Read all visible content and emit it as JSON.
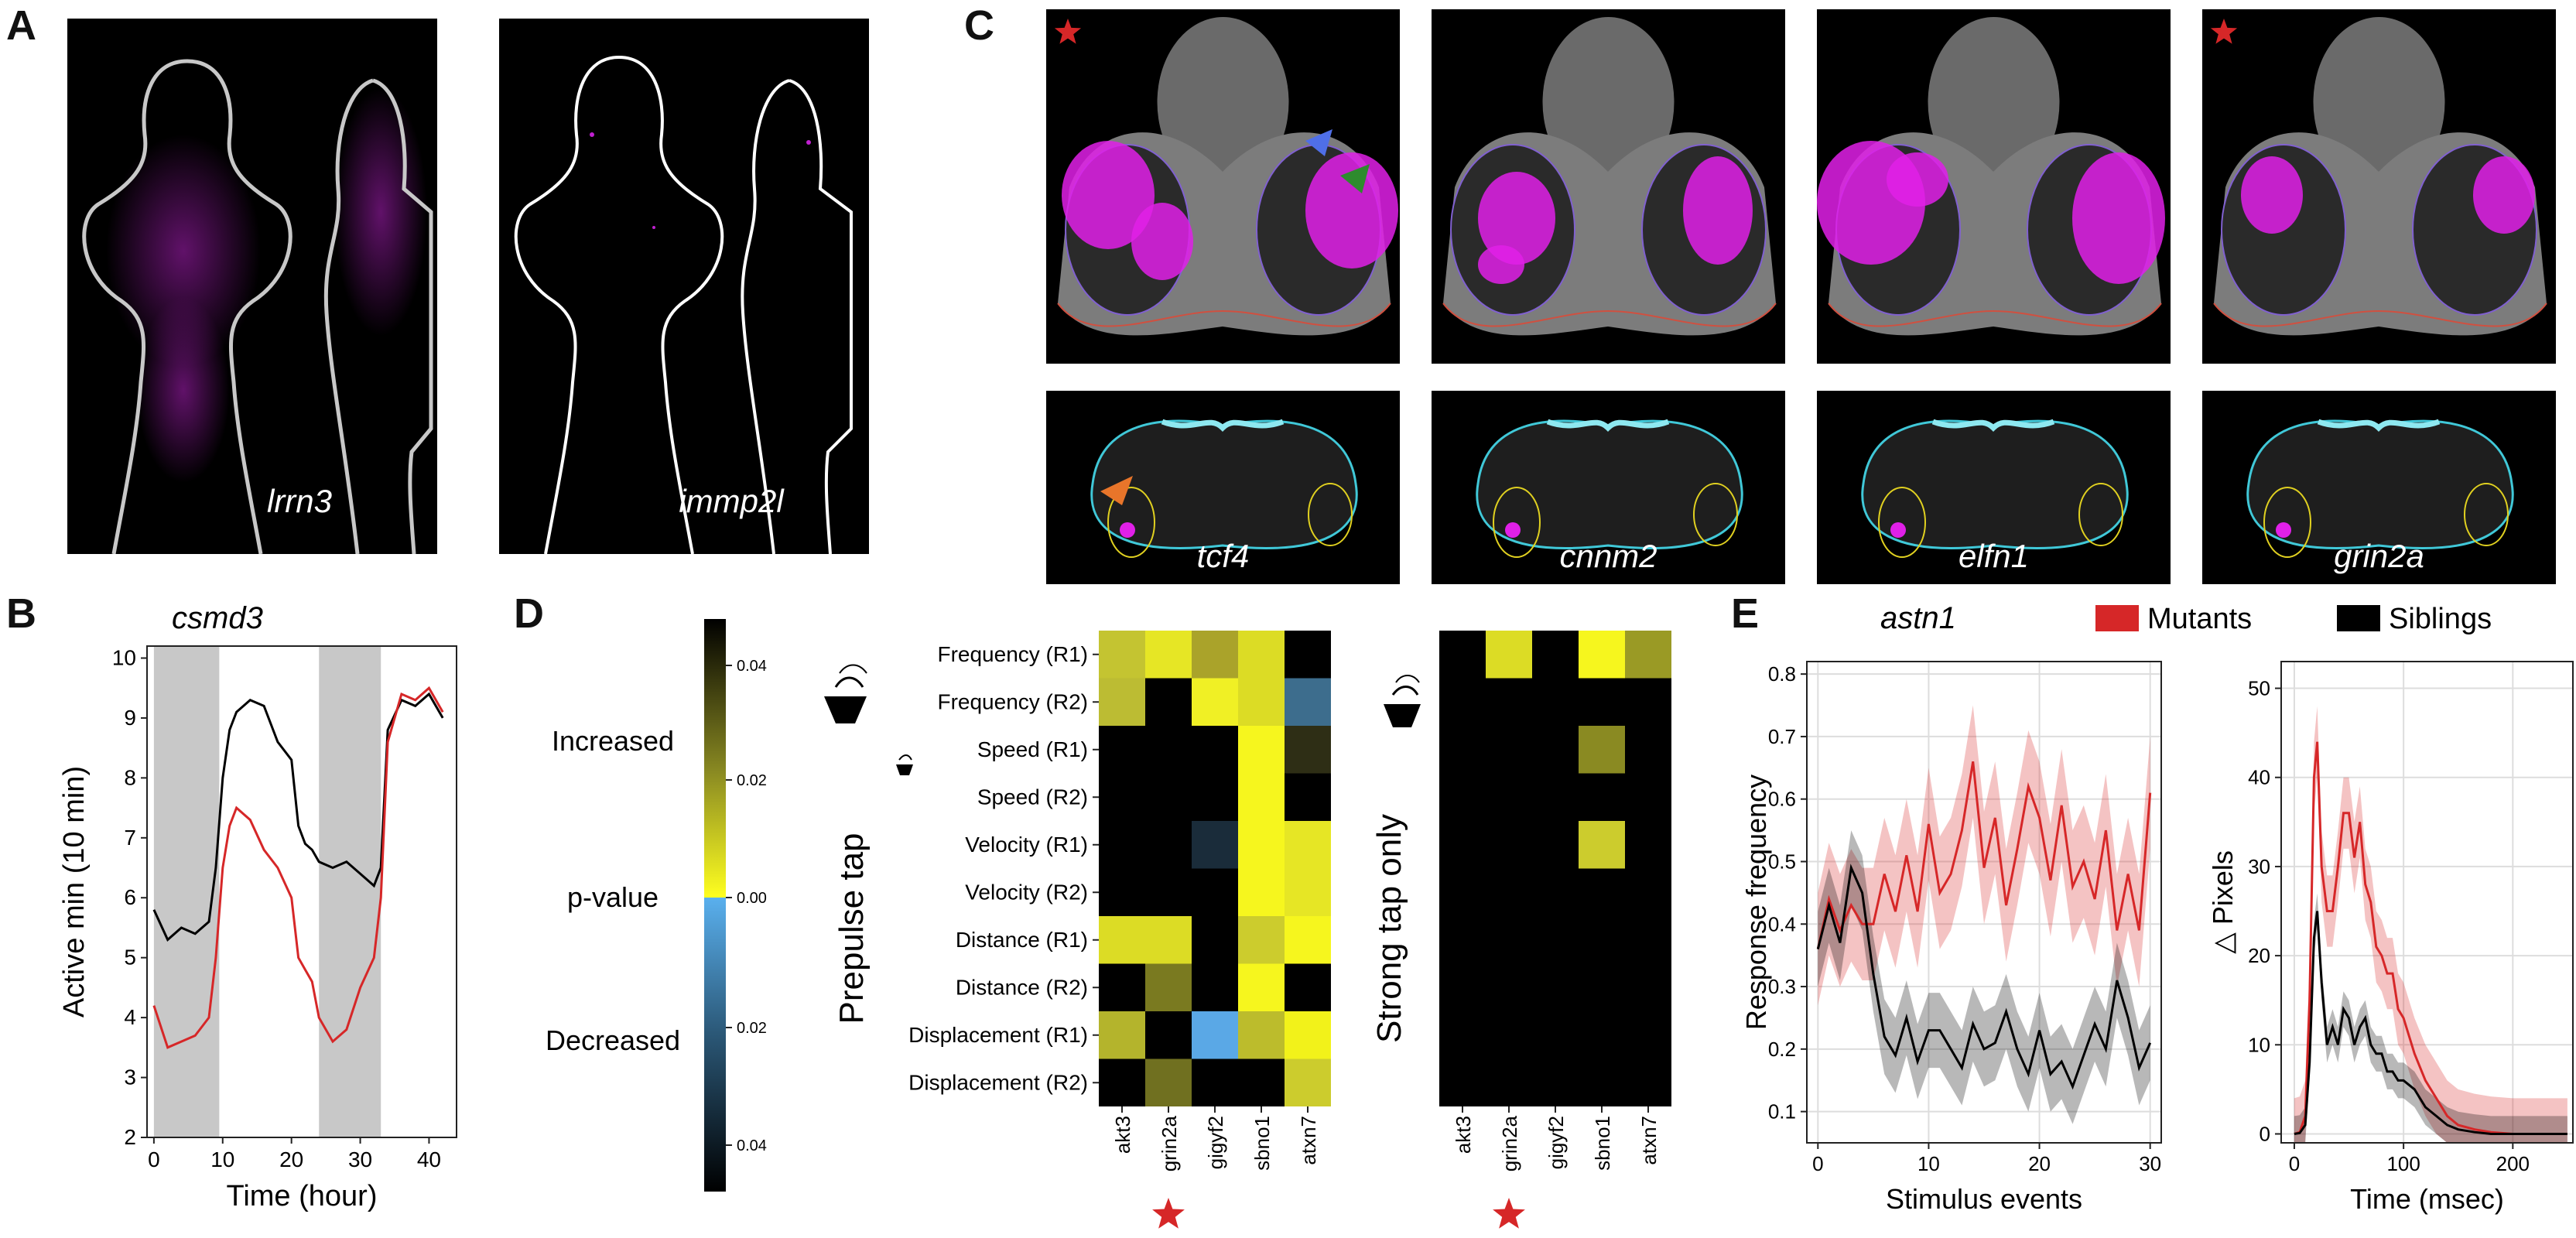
{
  "panels": {
    "A": "A",
    "B": "B",
    "C": "C",
    "D": "D",
    "E": "E"
  },
  "panel_a": {
    "labels": [
      "lrrn3",
      "immp2l"
    ]
  },
  "panel_c": {
    "top_labels": [
      "tcf4",
      "cnnm2",
      "elfn1",
      "grin2a"
    ]
  },
  "panel_b": {
    "gene": "csmd3"
  },
  "panel_d": {
    "colorbar": {
      "ticks_top": [
        "0.04",
        "0.02",
        "0.00"
      ],
      "ticks_bottom": [
        "0.02",
        "0.04"
      ],
      "increased": "Increased",
      "pvalue": "p-value",
      "decreased": "Decreased"
    },
    "row_labels": [
      "Frequency (R1)",
      "Frequency (R2)",
      "Speed (R1)",
      "Speed (R2)",
      "Velocity (R1)",
      "Velocity (R2)",
      "Distance (R1)",
      "Distance (R2)",
      "Displacement (R1)",
      "Displacement (R2)"
    ],
    "col_labels": [
      "akt3",
      "grin2a",
      "gigyf2",
      "sbno1",
      "atxn7"
    ],
    "left_title": "Prepulse tap",
    "right_title": "Strong tap only"
  },
  "panel_e": {
    "gene": "astn1",
    "legend": [
      "Mutants",
      "Siblings"
    ]
  },
  "colors": {
    "mutant": "#d62728",
    "sibling": "#000000",
    "magenta": "#e020e8",
    "highlight_yellow": "#f2f21a",
    "blue_arrow": "#4f6fe8",
    "green_arrow": "#2e8b2e",
    "orange_arrow": "#e8752a",
    "star": "#d62728"
  },
  "chart_data": [
    {
      "type": "line",
      "title": "csmd3",
      "xlabel": "Time (hour)",
      "ylabel": "Active min (10 min)",
      "xlim": [
        -1,
        44
      ],
      "ylim": [
        2,
        10.2
      ],
      "xticks": [
        0,
        10,
        20,
        30,
        40
      ],
      "yticks": [
        2,
        3,
        4,
        5,
        6,
        7,
        8,
        9,
        10
      ],
      "shaded_x": [
        [
          0,
          9.5
        ],
        [
          24,
          33
        ]
      ],
      "series": [
        {
          "color": "#000000",
          "points": [
            [
              0,
              5.8
            ],
            [
              2,
              5.3
            ],
            [
              4,
              5.5
            ],
            [
              6,
              5.4
            ],
            [
              8,
              5.6
            ],
            [
              9,
              6.5
            ],
            [
              10,
              8.0
            ],
            [
              11,
              8.8
            ],
            [
              12,
              9.1
            ],
            [
              14,
              9.3
            ],
            [
              16,
              9.2
            ],
            [
              18,
              8.6
            ],
            [
              20,
              8.3
            ],
            [
              21,
              7.2
            ],
            [
              22,
              6.9
            ],
            [
              23,
              6.8
            ],
            [
              24,
              6.6
            ],
            [
              26,
              6.5
            ],
            [
              28,
              6.6
            ],
            [
              30,
              6.4
            ],
            [
              32,
              6.2
            ],
            [
              33,
              6.5
            ],
            [
              34,
              8.8
            ],
            [
              36,
              9.3
            ],
            [
              38,
              9.2
            ],
            [
              40,
              9.4
            ],
            [
              42,
              9.0
            ]
          ]
        },
        {
          "color": "#d62728",
          "points": [
            [
              0,
              4.2
            ],
            [
              2,
              3.5
            ],
            [
              4,
              3.6
            ],
            [
              6,
              3.7
            ],
            [
              8,
              4.0
            ],
            [
              9,
              5.0
            ],
            [
              10,
              6.5
            ],
            [
              11,
              7.2
            ],
            [
              12,
              7.5
            ],
            [
              14,
              7.3
            ],
            [
              16,
              6.8
            ],
            [
              18,
              6.5
            ],
            [
              20,
              6.0
            ],
            [
              21,
              5.0
            ],
            [
              22,
              4.8
            ],
            [
              23,
              4.6
            ],
            [
              24,
              4.0
            ],
            [
              26,
              3.6
            ],
            [
              28,
              3.8
            ],
            [
              30,
              4.5
            ],
            [
              32,
              5.0
            ],
            [
              33,
              6.0
            ],
            [
              34,
              8.6
            ],
            [
              36,
              9.4
            ],
            [
              38,
              9.3
            ],
            [
              40,
              9.5
            ],
            [
              42,
              9.1
            ]
          ]
        }
      ]
    },
    {
      "type": "heatmap",
      "title": "Prepulse tap",
      "rows": [
        "Frequency (R1)",
        "Frequency (R2)",
        "Speed (R1)",
        "Speed (R2)",
        "Velocity (R1)",
        "Velocity (R2)",
        "Distance (R1)",
        "Distance (R2)",
        "Displacement (R1)",
        "Displacement (R2)"
      ],
      "cols": [
        "akt3",
        "grin2a",
        "gigyf2",
        "sbno1",
        "atxn7"
      ],
      "cells": [
        [
          "#c4c431",
          "#e6e625",
          "#aaa32a",
          "#dcdc25",
          "#000000"
        ],
        [
          "#bcbc33",
          "#000000",
          "#f0f025",
          "#dcdc25",
          "#3d6d8d"
        ],
        [
          "#000000",
          "#000000",
          "#000000",
          "#f6f61e",
          "#2e2e15"
        ],
        [
          "#000000",
          "#000000",
          "#000000",
          "#f6f61e",
          "#000000"
        ],
        [
          "#000000",
          "#000000",
          "#1a2c3a",
          "#f6f61e",
          "#e6e625"
        ],
        [
          "#000000",
          "#000000",
          "#000000",
          "#f6f61e",
          "#e6e625"
        ],
        [
          "#dcdc25",
          "#dcdc25",
          "#000000",
          "#cccc2d",
          "#f6f61e"
        ],
        [
          "#000000",
          "#7a7a20",
          "#000000",
          "#f6f61e",
          "#000000"
        ],
        [
          "#b4b42c",
          "#000000",
          "#5aa8e6",
          "#bcbc2c",
          "#f2f21a"
        ],
        [
          "#000000",
          "#707020",
          "#000000",
          "#000000",
          "#cccc2d"
        ]
      ]
    },
    {
      "type": "heatmap",
      "title": "Strong tap only",
      "rows": [
        "Frequency (R1)",
        "Frequency (R2)",
        "Speed (R1)",
        "Speed (R2)",
        "Velocity (R1)",
        "Velocity (R2)",
        "Distance (R1)",
        "Distance (R2)",
        "Displacement (R1)",
        "Displacement (R2)"
      ],
      "cols": [
        "akt3",
        "grin2a",
        "gigyf2",
        "sbno1",
        "atxn7"
      ],
      "cells": [
        [
          "#000000",
          "#dcdc25",
          "#000000",
          "#f6f61e",
          "#9a9a25"
        ],
        [
          "#000000",
          "#000000",
          "#000000",
          "#000000",
          "#000000"
        ],
        [
          "#000000",
          "#000000",
          "#000000",
          "#8a8a22",
          "#000000"
        ],
        [
          "#000000",
          "#000000",
          "#000000",
          "#000000",
          "#000000"
        ],
        [
          "#000000",
          "#000000",
          "#000000",
          "#cccc2d",
          "#000000"
        ],
        [
          "#000000",
          "#000000",
          "#000000",
          "#000000",
          "#000000"
        ],
        [
          "#000000",
          "#000000",
          "#000000",
          "#000000",
          "#000000"
        ],
        [
          "#000000",
          "#000000",
          "#000000",
          "#000000",
          "#000000"
        ],
        [
          "#000000",
          "#000000",
          "#000000",
          "#000000",
          "#000000"
        ],
        [
          "#000000",
          "#000000",
          "#000000",
          "#000000",
          "#000000"
        ]
      ]
    },
    {
      "type": "line",
      "xlabel": "Stimulus events",
      "ylabel": "Response frequency",
      "xlim": [
        -1,
        31
      ],
      "ylim": [
        0.05,
        0.82
      ],
      "xticks": [
        0,
        10,
        20,
        30
      ],
      "yticks": [
        0.1,
        0.2,
        0.3,
        0.4,
        0.5,
        0.6,
        0.7,
        0.8
      ],
      "series": [
        {
          "name": "Mutants",
          "color": "#d62728",
          "points": [
            [
              0,
              0.36
            ],
            [
              1,
              0.44
            ],
            [
              2,
              0.39
            ],
            [
              3,
              0.43
            ],
            [
              4,
              0.4
            ],
            [
              5,
              0.4
            ],
            [
              6,
              0.48
            ],
            [
              7,
              0.42
            ],
            [
              8,
              0.51
            ],
            [
              9,
              0.42
            ],
            [
              10,
              0.56
            ],
            [
              11,
              0.45
            ],
            [
              12,
              0.48
            ],
            [
              13,
              0.55
            ],
            [
              14,
              0.66
            ],
            [
              15,
              0.49
            ],
            [
              16,
              0.57
            ],
            [
              17,
              0.43
            ],
            [
              18,
              0.52
            ],
            [
              19,
              0.62
            ],
            [
              20,
              0.57
            ],
            [
              21,
              0.47
            ],
            [
              22,
              0.59
            ],
            [
              23,
              0.46
            ],
            [
              24,
              0.5
            ],
            [
              25,
              0.44
            ],
            [
              26,
              0.55
            ],
            [
              27,
              0.39
            ],
            [
              28,
              0.48
            ],
            [
              29,
              0.39
            ],
            [
              30,
              0.61
            ]
          ],
          "band": 0.09
        },
        {
          "name": "Siblings",
          "color": "#000000",
          "points": [
            [
              0,
              0.36
            ],
            [
              1,
              0.43
            ],
            [
              2,
              0.37
            ],
            [
              3,
              0.49
            ],
            [
              4,
              0.45
            ],
            [
              5,
              0.32
            ],
            [
              6,
              0.22
            ],
            [
              7,
              0.19
            ],
            [
              8,
              0.25
            ],
            [
              9,
              0.18
            ],
            [
              10,
              0.23
            ],
            [
              11,
              0.23
            ],
            [
              12,
              0.2
            ],
            [
              13,
              0.17
            ],
            [
              14,
              0.24
            ],
            [
              15,
              0.2
            ],
            [
              16,
              0.21
            ],
            [
              17,
              0.26
            ],
            [
              18,
              0.2
            ],
            [
              19,
              0.16
            ],
            [
              20,
              0.23
            ],
            [
              21,
              0.16
            ],
            [
              22,
              0.18
            ],
            [
              23,
              0.14
            ],
            [
              24,
              0.19
            ],
            [
              25,
              0.24
            ],
            [
              26,
              0.2
            ],
            [
              27,
              0.31
            ],
            [
              28,
              0.25
            ],
            [
              29,
              0.17
            ],
            [
              30,
              0.21
            ]
          ],
          "band": 0.06
        }
      ]
    },
    {
      "type": "line",
      "xlabel": "Time (msec)",
      "ylabel": "△ Pixels",
      "xlim": [
        -12,
        255
      ],
      "ylim": [
        -1,
        53
      ],
      "xticks": [
        0,
        100,
        200
      ],
      "yticks": [
        0,
        10,
        20,
        30,
        40,
        50
      ],
      "series": [
        {
          "name": "Mutants",
          "color": "#d62728",
          "points": [
            [
              0,
              0
            ],
            [
              5,
              0.2
            ],
            [
              10,
              2
            ],
            [
              14,
              15
            ],
            [
              18,
              40
            ],
            [
              21,
              44
            ],
            [
              25,
              30
            ],
            [
              30,
              25
            ],
            [
              35,
              25
            ],
            [
              40,
              30
            ],
            [
              45,
              36
            ],
            [
              50,
              36
            ],
            [
              55,
              31
            ],
            [
              60,
              35
            ],
            [
              65,
              28
            ],
            [
              70,
              26
            ],
            [
              75,
              21
            ],
            [
              80,
              20
            ],
            [
              85,
              18
            ],
            [
              90,
              18
            ],
            [
              95,
              14
            ],
            [
              100,
              13
            ],
            [
              110,
              9
            ],
            [
              120,
              6
            ],
            [
              130,
              4
            ],
            [
              140,
              2
            ],
            [
              150,
              1
            ],
            [
              165,
              0.5
            ],
            [
              180,
              0.2
            ],
            [
              200,
              0
            ],
            [
              250,
              0
            ]
          ],
          "band": 4
        },
        {
          "name": "Siblings",
          "color": "#000000",
          "points": [
            [
              0,
              0
            ],
            [
              5,
              0.1
            ],
            [
              10,
              1
            ],
            [
              14,
              8
            ],
            [
              18,
              22
            ],
            [
              21,
              25
            ],
            [
              25,
              17
            ],
            [
              30,
              10
            ],
            [
              35,
              12
            ],
            [
              40,
              10
            ],
            [
              45,
              14
            ],
            [
              50,
              13
            ],
            [
              55,
              10
            ],
            [
              60,
              12
            ],
            [
              65,
              13
            ],
            [
              70,
              10
            ],
            [
              75,
              9
            ],
            [
              80,
              9
            ],
            [
              85,
              7
            ],
            [
              90,
              7
            ],
            [
              95,
              6
            ],
            [
              100,
              6
            ],
            [
              110,
              5
            ],
            [
              120,
              3
            ],
            [
              130,
              2
            ],
            [
              140,
              1
            ],
            [
              150,
              0.5
            ],
            [
              165,
              0.2
            ],
            [
              180,
              0
            ],
            [
              200,
              0
            ],
            [
              250,
              0
            ]
          ],
          "band": 2
        }
      ]
    }
  ]
}
